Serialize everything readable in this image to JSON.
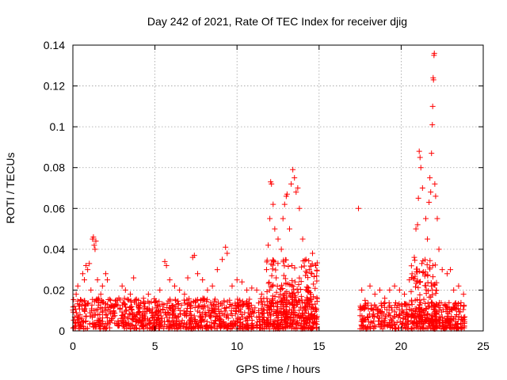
{
  "chart_data": {
    "type": "scatter",
    "title": "Day 242 of 2021, Rate Of TEC Index for receiver djig",
    "xlabel": "GPS time / hours",
    "ylabel": "ROTI / TECUs",
    "xlim": [
      0,
      25
    ],
    "ylim": [
      0,
      0.14
    ],
    "xticks": [
      0,
      5,
      10,
      15,
      20,
      25
    ],
    "yticks": [
      0,
      0.02,
      0.04,
      0.06,
      0.08,
      0.1,
      0.12,
      0.14
    ],
    "xtick_labels": [
      "0",
      "5",
      "10",
      "15",
      "20",
      "25"
    ],
    "ytick_labels": [
      "0",
      "0.02",
      "0.04",
      "0.06",
      "0.08",
      "0.1",
      "0.12",
      "0.14"
    ],
    "grid": true,
    "marker": "+",
    "color": "#ff0000",
    "series": [
      {
        "name": "ROTI",
        "points": [
          [
            0.1,
            0.012
          ],
          [
            0.2,
            0.018
          ],
          [
            0.3,
            0.022
          ],
          [
            0.5,
            0.015
          ],
          [
            0.6,
            0.028
          ],
          [
            0.7,
            0.025
          ],
          [
            0.8,
            0.032
          ],
          [
            0.9,
            0.03
          ],
          [
            1.0,
            0.033
          ],
          [
            1.1,
            0.02
          ],
          [
            1.2,
            0.045
          ],
          [
            1.25,
            0.046
          ],
          [
            1.3,
            0.042
          ],
          [
            1.35,
            0.04
          ],
          [
            1.4,
            0.044
          ],
          [
            1.5,
            0.025
          ],
          [
            1.7,
            0.018
          ],
          [
            1.8,
            0.022
          ],
          [
            2.0,
            0.028
          ],
          [
            2.1,
            0.025
          ],
          [
            2.3,
            0.015
          ],
          [
            2.5,
            0.012
          ],
          [
            2.8,
            0.016
          ],
          [
            3.0,
            0.022
          ],
          [
            3.2,
            0.02
          ],
          [
            3.5,
            0.018
          ],
          [
            3.7,
            0.026
          ],
          [
            4.0,
            0.015
          ],
          [
            4.3,
            0.016
          ],
          [
            4.6,
            0.018
          ],
          [
            5.0,
            0.014
          ],
          [
            5.3,
            0.02
          ],
          [
            5.6,
            0.034
          ],
          [
            5.7,
            0.032
          ],
          [
            5.9,
            0.025
          ],
          [
            6.2,
            0.022
          ],
          [
            6.5,
            0.02
          ],
          [
            6.8,
            0.018
          ],
          [
            7.0,
            0.026
          ],
          [
            7.3,
            0.036
          ],
          [
            7.4,
            0.037
          ],
          [
            7.6,
            0.028
          ],
          [
            7.9,
            0.025
          ],
          [
            8.2,
            0.02
          ],
          [
            8.5,
            0.022
          ],
          [
            8.8,
            0.03
          ],
          [
            9.1,
            0.035
          ],
          [
            9.3,
            0.041
          ],
          [
            9.4,
            0.038
          ],
          [
            9.7,
            0.022
          ],
          [
            10.0,
            0.025
          ],
          [
            10.3,
            0.024
          ],
          [
            10.6,
            0.02
          ],
          [
            10.9,
            0.021
          ],
          [
            11.2,
            0.02
          ],
          [
            11.5,
            0.018
          ],
          [
            11.8,
            0.03
          ],
          [
            11.9,
            0.042
          ],
          [
            12.0,
            0.055
          ],
          [
            12.05,
            0.073
          ],
          [
            12.1,
            0.072
          ],
          [
            12.2,
            0.062
          ],
          [
            12.3,
            0.05
          ],
          [
            12.5,
            0.045
          ],
          [
            12.7,
            0.04
          ],
          [
            12.8,
            0.055
          ],
          [
            12.9,
            0.062
          ],
          [
            13.0,
            0.066
          ],
          [
            13.05,
            0.067
          ],
          [
            13.2,
            0.05
          ],
          [
            13.3,
            0.072
          ],
          [
            13.4,
            0.079
          ],
          [
            13.5,
            0.075
          ],
          [
            13.6,
            0.068
          ],
          [
            13.7,
            0.07
          ],
          [
            13.8,
            0.06
          ],
          [
            14.0,
            0.045
          ],
          [
            14.2,
            0.035
          ],
          [
            14.4,
            0.03
          ],
          [
            14.6,
            0.038
          ],
          [
            14.8,
            0.032
          ],
          [
            17.4,
            0.06
          ],
          [
            17.6,
            0.02
          ],
          [
            17.8,
            0.015
          ],
          [
            18.1,
            0.022
          ],
          [
            18.4,
            0.018
          ],
          [
            18.7,
            0.02
          ],
          [
            19.0,
            0.016
          ],
          [
            19.3,
            0.02
          ],
          [
            19.6,
            0.022
          ],
          [
            19.9,
            0.02
          ],
          [
            20.2,
            0.018
          ],
          [
            20.5,
            0.025
          ],
          [
            20.8,
            0.036
          ],
          [
            20.9,
            0.05
          ],
          [
            21.0,
            0.052
          ],
          [
            21.05,
            0.065
          ],
          [
            21.1,
            0.088
          ],
          [
            21.15,
            0.085
          ],
          [
            21.2,
            0.08
          ],
          [
            21.3,
            0.07
          ],
          [
            21.5,
            0.055
          ],
          [
            21.6,
            0.045
          ],
          [
            21.7,
            0.063
          ],
          [
            21.75,
            0.075
          ],
          [
            21.8,
            0.068
          ],
          [
            21.85,
            0.087
          ],
          [
            21.9,
            0.101
          ],
          [
            21.92,
            0.11
          ],
          [
            21.95,
            0.124
          ],
          [
            21.97,
            0.123
          ],
          [
            22.0,
            0.135
          ],
          [
            22.02,
            0.136
          ],
          [
            22.05,
            0.072
          ],
          [
            22.1,
            0.066
          ],
          [
            22.2,
            0.055
          ],
          [
            22.3,
            0.04
          ],
          [
            22.5,
            0.03
          ],
          [
            22.8,
            0.028
          ],
          [
            23.0,
            0.03
          ],
          [
            23.2,
            0.02
          ],
          [
            23.5,
            0.022
          ],
          [
            23.8,
            0.018
          ]
        ]
      }
    ],
    "dense_segments": [
      {
        "x_start": 0.0,
        "x_end": 14.9,
        "y_floor": 0.001,
        "y_ceiling": 0.016
      },
      {
        "x_start": 11.8,
        "x_end": 14.9,
        "y_floor": 0.003,
        "y_ceiling": 0.035
      },
      {
        "x_start": 17.5,
        "x_end": 23.9,
        "y_floor": 0.001,
        "y_ceiling": 0.014
      },
      {
        "x_start": 20.6,
        "x_end": 22.2,
        "y_floor": 0.003,
        "y_ceiling": 0.035
      }
    ]
  }
}
